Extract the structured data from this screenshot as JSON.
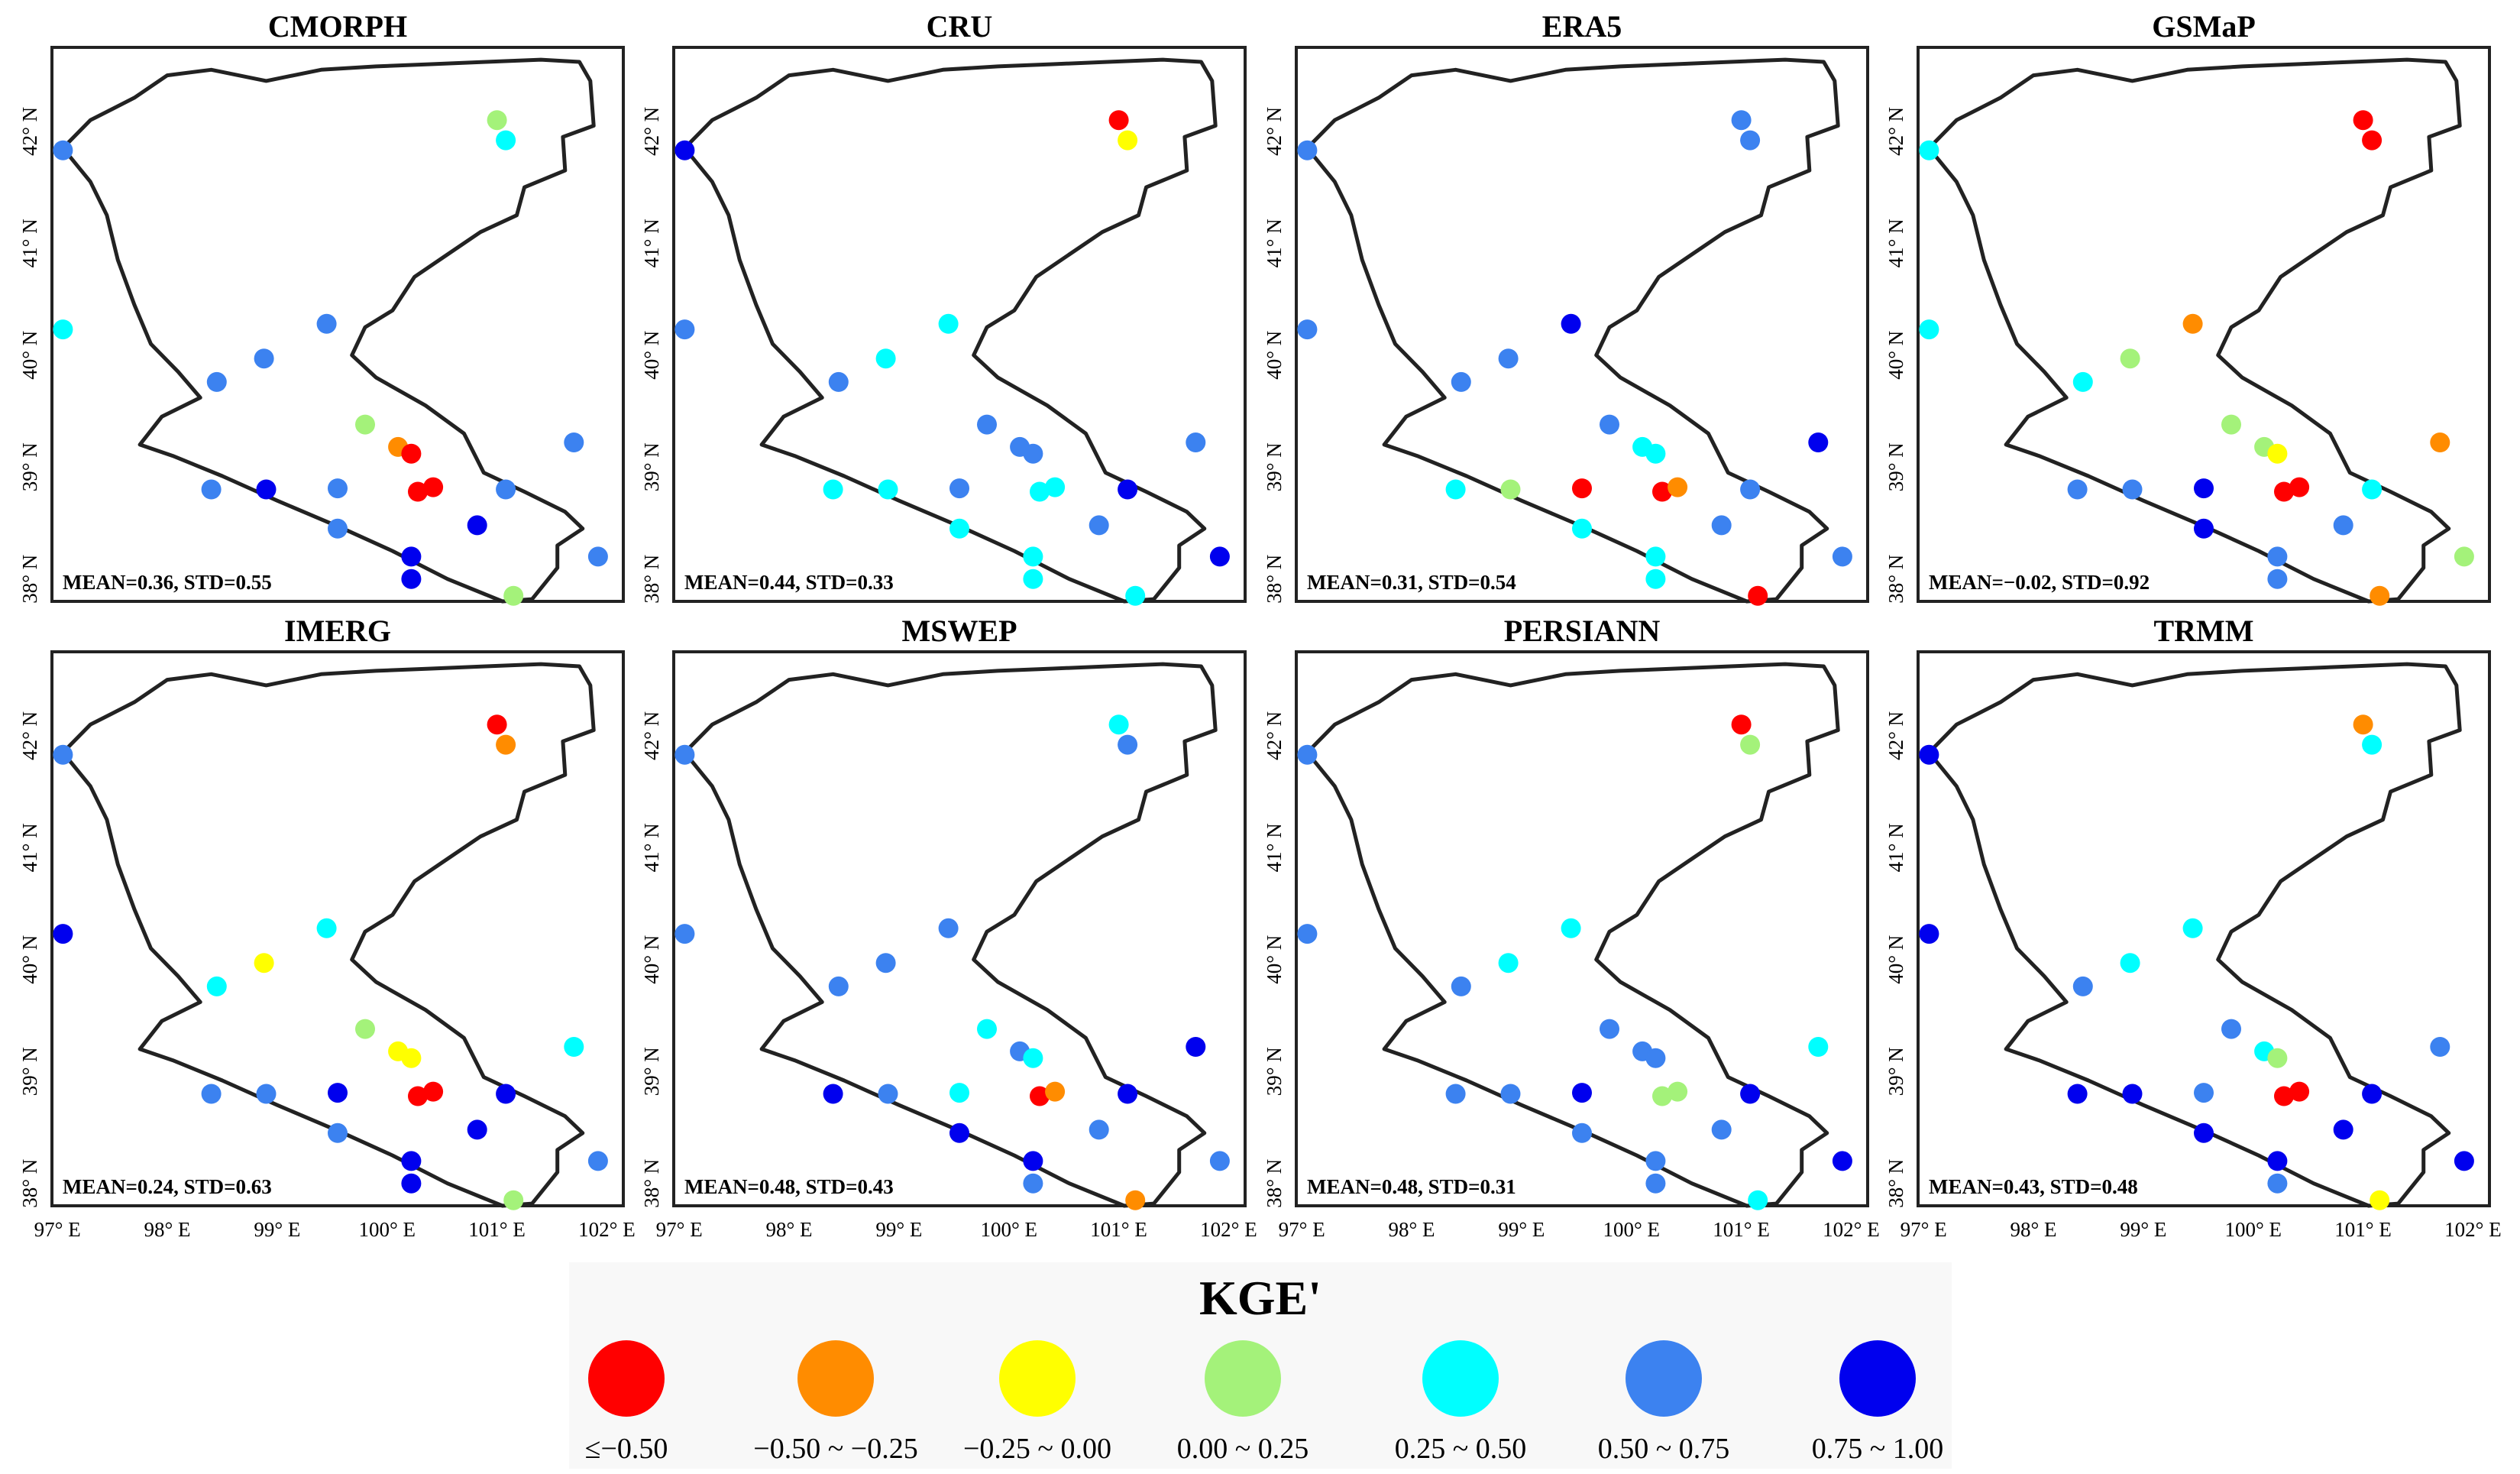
{
  "chart_data": {
    "type": "scatter",
    "variable": "KGE'",
    "axes": {
      "x_ticks": [
        "97° E",
        "98° E",
        "99° E",
        "100° E",
        "101° E",
        "102° E"
      ],
      "y_ticks": [
        "38° N",
        "39° N",
        "40° N",
        "41° N",
        "42° N"
      ],
      "xlim": [
        96.95,
        102.15
      ],
      "ylim": [
        37.8,
        42.75
      ]
    },
    "legend": {
      "title": "KGE'",
      "placement": "bottom-center",
      "classes": [
        {
          "label": "≤−0.50",
          "color": "#ff0000"
        },
        {
          "label": "−0.50 ~ −0.25",
          "color": "#ff8c00"
        },
        {
          "label": "−0.25 ~ 0.00",
          "color": "#ffff00"
        },
        {
          "label": "0.00 ~ 0.25",
          "color": "#a4f27a"
        },
        {
          "label": "0.25 ~ 0.50",
          "color": "#00ffff"
        },
        {
          "label": "0.50 ~ 0.75",
          "color": "#3c82f0"
        },
        {
          "label": "0.75 ~ 1.00",
          "color": "#0000ee"
        }
      ]
    },
    "stations": [
      {
        "lon": 97.05,
        "lat": 41.83
      },
      {
        "lon": 97.05,
        "lat": 40.23
      },
      {
        "lon": 98.45,
        "lat": 39.76
      },
      {
        "lon": 98.88,
        "lat": 39.97
      },
      {
        "lon": 99.45,
        "lat": 40.28
      },
      {
        "lon": 99.8,
        "lat": 39.38
      },
      {
        "lon": 100.1,
        "lat": 39.18
      },
      {
        "lon": 100.22,
        "lat": 39.12
      },
      {
        "lon": 101.0,
        "lat": 42.1
      },
      {
        "lon": 101.08,
        "lat": 41.92
      },
      {
        "lon": 101.7,
        "lat": 39.22
      },
      {
        "lon": 98.4,
        "lat": 38.8
      },
      {
        "lon": 98.9,
        "lat": 38.8
      },
      {
        "lon": 99.55,
        "lat": 38.81
      },
      {
        "lon": 100.28,
        "lat": 38.78
      },
      {
        "lon": 100.42,
        "lat": 38.82
      },
      {
        "lon": 101.08,
        "lat": 38.8
      },
      {
        "lon": 99.55,
        "lat": 38.45
      },
      {
        "lon": 100.22,
        "lat": 38.2
      },
      {
        "lon": 100.22,
        "lat": 38.0
      },
      {
        "lon": 100.82,
        "lat": 38.48
      },
      {
        "lon": 101.15,
        "lat": 37.85
      },
      {
        "lon": 101.92,
        "lat": 38.2
      }
    ],
    "panels": [
      {
        "title": "CMORPH",
        "mean": 0.36,
        "std": 0.55,
        "stat_label": "MEAN=0.36, STD=0.55",
        "kge_class": [
          5,
          4,
          5,
          5,
          5,
          3,
          1,
          0,
          3,
          4,
          5,
          5,
          6,
          5,
          0,
          0,
          5,
          5,
          6,
          6,
          6,
          3,
          5
        ]
      },
      {
        "title": "CRU",
        "mean": 0.44,
        "std": 0.33,
        "stat_label": "MEAN=0.44, STD=0.33",
        "kge_class": [
          6,
          5,
          5,
          4,
          4,
          5,
          5,
          5,
          0,
          2,
          5,
          4,
          4,
          5,
          4,
          4,
          6,
          4,
          4,
          4,
          5,
          4,
          6
        ]
      },
      {
        "title": "ERA5",
        "mean": 0.31,
        "std": 0.54,
        "stat_label": "MEAN=0.31, STD=0.54",
        "kge_class": [
          5,
          5,
          5,
          5,
          6,
          5,
          4,
          4,
          5,
          5,
          6,
          4,
          3,
          0,
          0,
          1,
          5,
          4,
          4,
          4,
          5,
          0,
          5
        ]
      },
      {
        "title": "GSMaP",
        "mean": -0.02,
        "std": 0.92,
        "stat_label": "MEAN=−0.02, STD=0.92",
        "kge_class": [
          4,
          4,
          4,
          3,
          1,
          3,
          3,
          2,
          0,
          0,
          1,
          5,
          5,
          6,
          0,
          0,
          4,
          6,
          5,
          5,
          5,
          1,
          3
        ]
      },
      {
        "title": "IMERG",
        "mean": 0.24,
        "std": 0.63,
        "stat_label": "MEAN=0.24, STD=0.63",
        "kge_class": [
          5,
          6,
          4,
          2,
          4,
          3,
          2,
          2,
          0,
          1,
          4,
          5,
          5,
          6,
          0,
          0,
          6,
          5,
          6,
          6,
          6,
          3,
          5
        ]
      },
      {
        "title": "MSWEP",
        "mean": 0.48,
        "std": 0.43,
        "stat_label": "MEAN=0.48, STD=0.43",
        "kge_class": [
          5,
          5,
          5,
          5,
          5,
          4,
          5,
          4,
          4,
          5,
          6,
          6,
          5,
          4,
          0,
          1,
          6,
          6,
          6,
          5,
          5,
          1,
          5
        ]
      },
      {
        "title": "PERSIANN",
        "mean": 0.48,
        "std": 0.31,
        "stat_label": "MEAN=0.48, STD=0.31",
        "kge_class": [
          5,
          5,
          5,
          4,
          4,
          5,
          5,
          5,
          0,
          3,
          4,
          5,
          5,
          6,
          3,
          3,
          6,
          5,
          5,
          5,
          5,
          4,
          6
        ]
      },
      {
        "title": "TRMM",
        "mean": 0.43,
        "std": 0.48,
        "stat_label": "MEAN=0.43, STD=0.48",
        "kge_class": [
          6,
          6,
          5,
          4,
          4,
          5,
          4,
          3,
          1,
          4,
          5,
          6,
          6,
          5,
          0,
          0,
          6,
          6,
          6,
          5,
          6,
          2,
          6
        ]
      }
    ]
  }
}
